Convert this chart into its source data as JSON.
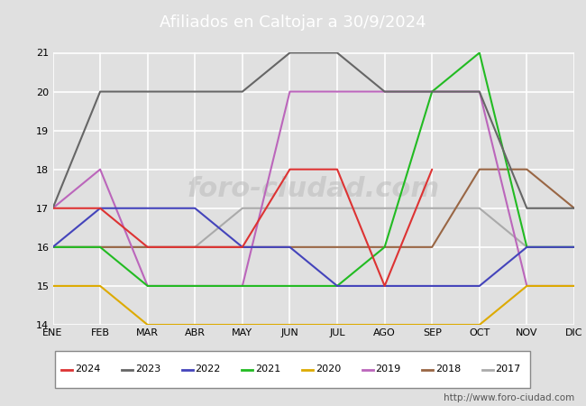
{
  "title": "Afiliados en Caltojar a 30/9/2024",
  "title_bgcolor": "#4a86c8",
  "title_color": "white",
  "months": [
    "ENE",
    "FEB",
    "MAR",
    "ABR",
    "MAY",
    "JUN",
    "JUL",
    "AGO",
    "SEP",
    "OCT",
    "NOV",
    "DIC"
  ],
  "ylim": [
    14.0,
    21.0
  ],
  "yticks": [
    14.0,
    15.0,
    16.0,
    17.0,
    18.0,
    19.0,
    20.0,
    21.0
  ],
  "series": {
    "2024": {
      "color": "#dd3333",
      "data": [
        17,
        17,
        16,
        16,
        16,
        18,
        18,
        15,
        18,
        null,
        null,
        null
      ]
    },
    "2023": {
      "color": "#666666",
      "data": [
        17,
        20,
        20,
        20,
        20,
        21,
        21,
        20,
        20,
        20,
        17,
        17
      ]
    },
    "2022": {
      "color": "#4444bb",
      "data": [
        16,
        17,
        17,
        17,
        16,
        16,
        15,
        15,
        15,
        15,
        16,
        16
      ]
    },
    "2021": {
      "color": "#22bb22",
      "data": [
        16,
        16,
        15,
        15,
        15,
        15,
        15,
        16,
        20,
        21,
        16,
        16
      ]
    },
    "2020": {
      "color": "#ddaa00",
      "data": [
        15,
        15,
        14,
        14,
        14,
        14,
        14,
        14,
        14,
        14,
        15,
        15
      ]
    },
    "2019": {
      "color": "#bb66bb",
      "data": [
        17,
        18,
        15,
        15,
        15,
        20,
        20,
        20,
        20,
        20,
        15,
        15
      ]
    },
    "2018": {
      "color": "#996644",
      "data": [
        16,
        16,
        16,
        16,
        16,
        16,
        16,
        16,
        16,
        18,
        18,
        17
      ]
    },
    "2017": {
      "color": "#aaaaaa",
      "data": [
        16,
        16,
        16,
        16,
        17,
        17,
        17,
        17,
        17,
        17,
        16,
        16
      ]
    }
  },
  "watermark": "foro-ciudad.com",
  "url": "http://www.foro-ciudad.com",
  "background_color": "#e0e0e0",
  "plot_background": "#e0e0e0",
  "grid_color": "white"
}
